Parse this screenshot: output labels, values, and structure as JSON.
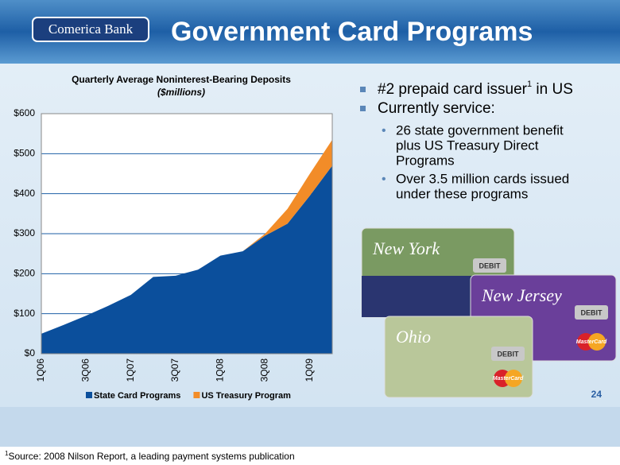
{
  "header": {
    "logo": "Comerica Bank",
    "title": "Government Card Programs"
  },
  "chart_data": {
    "type": "area",
    "title": "Quarterly Average Noninterest-Bearing Deposits",
    "subtitle": "($millions)",
    "categories": [
      "1Q06",
      null,
      "3Q06",
      null,
      "1Q07",
      null,
      "3Q07",
      null,
      "1Q08",
      null,
      "3Q08",
      null,
      "1Q09",
      null
    ],
    "series": [
      {
        "name": "State Card Programs",
        "color": "#0b4f9c",
        "values": [
          50,
          72,
          95,
          120,
          147,
          192,
          195,
          210,
          245,
          256,
          295,
          325,
          395,
          470
        ]
      },
      {
        "name": "US Treasury Program",
        "color": "#f28c28",
        "values": [
          0,
          0,
          0,
          0,
          0,
          0,
          0,
          0,
          0,
          0,
          5,
          37,
          55,
          65
        ]
      }
    ],
    "stacked": true,
    "ylim": [
      0,
      600
    ],
    "yticks": [
      {
        "value": 0,
        "label": "$0"
      },
      {
        "value": 100,
        "label": "$100"
      },
      {
        "value": 200,
        "label": "$200"
      },
      {
        "value": 300,
        "label": "$300"
      },
      {
        "value": 400,
        "label": "$400"
      },
      {
        "value": 500,
        "label": "$500"
      },
      {
        "value": 600,
        "label": "$600"
      }
    ],
    "grid": true,
    "legend": "bottom"
  },
  "bullets": [
    {
      "text": "#2 prepaid card issuer",
      "sup": "1",
      "tail": " in US"
    },
    {
      "text": "Currently service:"
    }
  ],
  "subbullets": [
    [
      "26 state government benefit",
      "plus US Treasury Direct",
      "Programs"
    ],
    [
      "Over 3.5 million cards issued",
      "under these programs"
    ]
  ],
  "cards": [
    {
      "name": "New York",
      "label": "DEBIT"
    },
    {
      "name": "New Jersey",
      "label": "DEBIT",
      "brand": "MasterCard"
    },
    {
      "name": "Ohio",
      "label": "DEBIT",
      "brand": "MasterCard"
    }
  ],
  "page_number": "24",
  "footnote": {
    "sup": "1",
    "text": "Source: 2008 Nilson Report, a leading payment systems publication"
  }
}
